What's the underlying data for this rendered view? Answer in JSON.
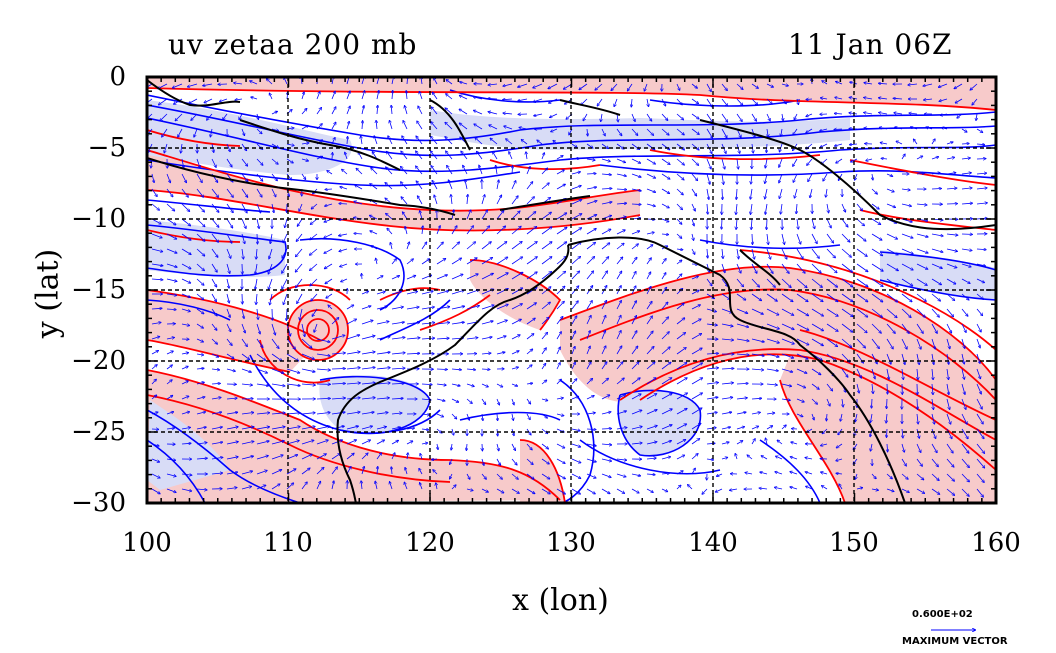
{
  "title": {
    "left": "uv zetaa 200 mb",
    "right": "11 Jan 06Z"
  },
  "axes": {
    "xlabel": "x (lon)",
    "ylabel": "y (lat)",
    "xlim": [
      100,
      160
    ],
    "ylim": [
      -30,
      0
    ],
    "xticks": [
      "100",
      "110",
      "120",
      "130",
      "140",
      "150",
      "160"
    ],
    "yticks": [
      "0",
      "−5",
      "−10",
      "−15",
      "−20",
      "−25",
      "−30"
    ],
    "grid": true
  },
  "legend": {
    "vector_value": "0.600E+02",
    "vector_label": "MAXIMUM VECTOR"
  },
  "colors": {
    "positive_contour": "#ff0000",
    "negative_contour": "#0000ff",
    "positive_fill": "#f7caca",
    "negative_fill": "#d8dcf6",
    "vectors": "#0000ff",
    "coastline": "#000000"
  },
  "chart_data": {
    "type": "heatmap",
    "variables": [
      "uv",
      "zetaa"
    ],
    "level": "200 mb",
    "time": "11 Jan 06Z",
    "x_range": [
      100,
      160
    ],
    "y_range": [
      -30,
      0
    ],
    "features": {
      "cyclonic_vortex_center": [
        112.5,
        -18
      ]
    }
  }
}
